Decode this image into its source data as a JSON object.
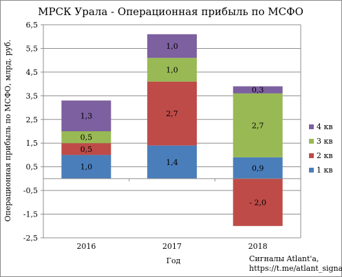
{
  "chart_data": {
    "type": "bar",
    "stacked": true,
    "title": "МРСК Урала - Операционная прибыль по МСФО",
    "xlabel": "Год",
    "ylabel": "Операционная прибыль по МСФО, млрд. руб.",
    "categories": [
      "2016",
      "2017",
      "2018"
    ],
    "ylim": [
      -2.5,
      6.5
    ],
    "yticks": [
      -2.5,
      -1.5,
      -0.5,
      0.5,
      1.5,
      2.5,
      3.5,
      4.5,
      5.5,
      6.5
    ],
    "ytick_labels": [
      "-2,5",
      "-1,5",
      "-0,5",
      "0,5",
      "1,5",
      "2,5",
      "3,5",
      "4,5",
      "5,5",
      "6,5"
    ],
    "grid": true,
    "legend_position": "right",
    "series": [
      {
        "name": "1 кв",
        "color": "#4a7ebb",
        "values": [
          1.0,
          1.4,
          0.9
        ],
        "labels": [
          "1,0",
          "1,4",
          "0,9"
        ]
      },
      {
        "name": "2 кв",
        "color": "#be4b48",
        "values": [
          0.5,
          2.7,
          -2.0
        ],
        "labels": [
          "0,5",
          "2,7",
          "- 2,0"
        ]
      },
      {
        "name": "3 кв",
        "color": "#98b954",
        "values": [
          0.5,
          1.0,
          2.7
        ],
        "labels": [
          "0,5",
          "1,0",
          "2,7"
        ]
      },
      {
        "name": "4 кв",
        "color": "#7d60a0",
        "values": [
          1.3,
          1.0,
          0.3
        ],
        "labels": [
          "1,3",
          "1,0",
          "0,3"
        ]
      }
    ],
    "credit": [
      "Сигналы Atlant'a,",
      "https://t.me/atlant_signals"
    ]
  }
}
